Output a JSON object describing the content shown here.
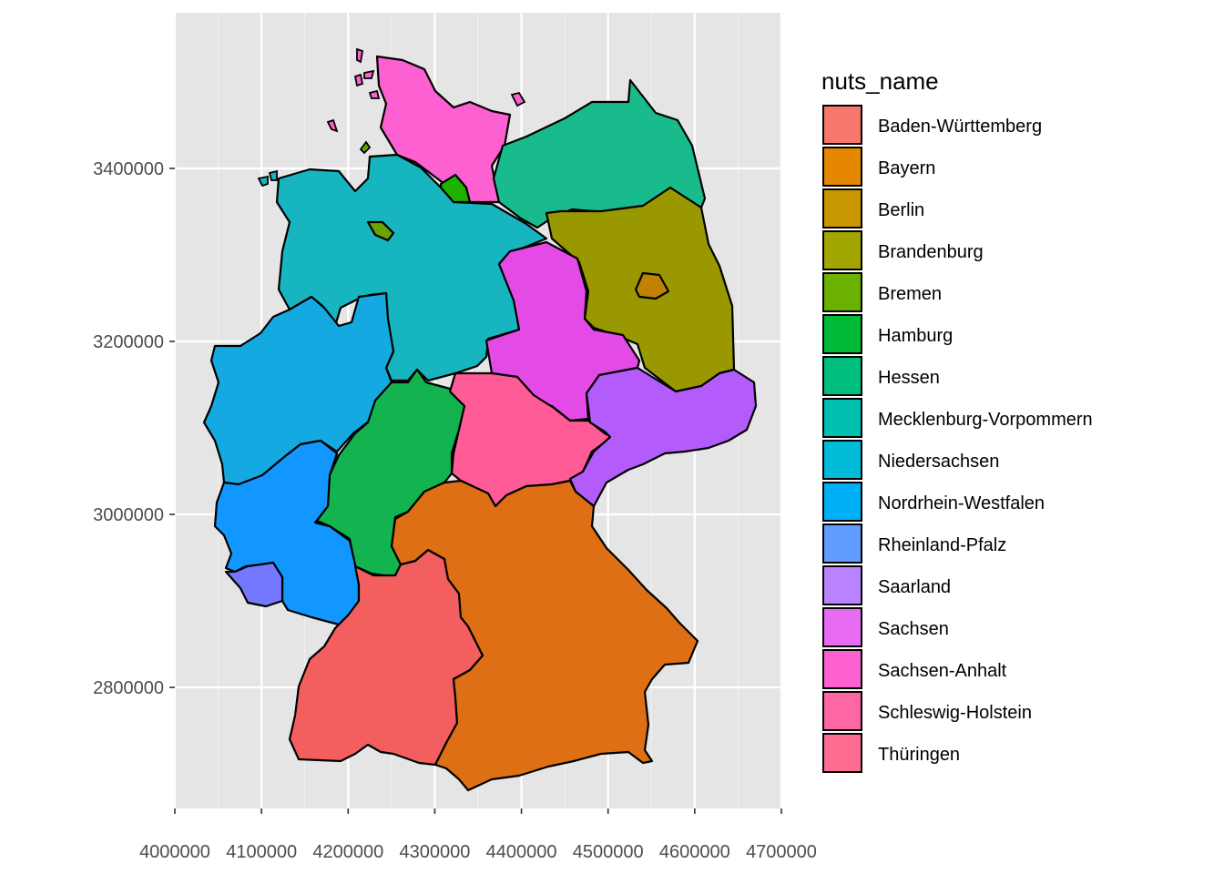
{
  "chart_data": {
    "type": "map",
    "title": "",
    "xlabel": "",
    "ylabel": "",
    "x_ticks": [
      "4000000",
      "4100000",
      "4200000",
      "4300000",
      "4400000",
      "4500000",
      "4600000",
      "4700000"
    ],
    "y_ticks": [
      "2800000",
      "3000000",
      "3200000",
      "3400000"
    ],
    "xlim": [
      4000000,
      4700000
    ],
    "ylim": [
      2660000,
      3580000
    ],
    "grid": true,
    "panel_background": "#e5e5e5",
    "legend_position": "right",
    "legend": {
      "title": "nuts_name",
      "entries": [
        {
          "name": "Baden-Württemberg",
          "color": "#F8766D"
        },
        {
          "name": "Bayern",
          "color": "#E58700"
        },
        {
          "name": "Berlin",
          "color": "#C99800"
        },
        {
          "name": "Brandenburg",
          "color": "#A3A500"
        },
        {
          "name": "Bremen",
          "color": "#6BB100"
        },
        {
          "name": "Hamburg",
          "color": "#00BA38"
        },
        {
          "name": "Hessen",
          "color": "#00BF7D"
        },
        {
          "name": "Mecklenburg-Vorpommern",
          "color": "#00C0AF"
        },
        {
          "name": "Niedersachsen",
          "color": "#00BCD8"
        },
        {
          "name": "Nordrhein-Westfalen",
          "color": "#00B0F6"
        },
        {
          "name": "Rheinland-Pfalz",
          "color": "#619CFF"
        },
        {
          "name": "Saarland",
          "color": "#B983FF"
        },
        {
          "name": "Sachsen",
          "color": "#E76BF3"
        },
        {
          "name": "Sachsen-Anhalt",
          "color": "#FD61D1"
        },
        {
          "name": "Schleswig-Holstein",
          "color": "#FF67A4"
        },
        {
          "name": "Thüringen",
          "color": "#FF6C91"
        }
      ]
    },
    "regions": [
      {
        "name": "Schleswig-Holstein",
        "fill": "#FD61D1"
      },
      {
        "name": "Hamburg",
        "fill": "#1DB100"
      },
      {
        "name": "Mecklenburg-Vorpommern",
        "fill": "#19BA8C"
      },
      {
        "name": "Niedersachsen",
        "fill": "#17B5BF"
      },
      {
        "name": "Bremen",
        "fill": "#6BA300"
      },
      {
        "name": "Brandenburg",
        "fill": "#9A9800"
      },
      {
        "name": "Berlin",
        "fill": "#C08200"
      },
      {
        "name": "Sachsen-Anhalt",
        "fill": "#E44AE6"
      },
      {
        "name": "Nordrhein-Westfalen",
        "fill": "#14A9E1"
      },
      {
        "name": "Hessen",
        "fill": "#13B450"
      },
      {
        "name": "Thüringen",
        "fill": "#FF5C97"
      },
      {
        "name": "Sachsen",
        "fill": "#B35CFB"
      },
      {
        "name": "Rheinland-Pfalz",
        "fill": "#1197FF"
      },
      {
        "name": "Saarland",
        "fill": "#7378FF"
      },
      {
        "name": "Baden-Württemberg",
        "fill": "#F35E5E"
      },
      {
        "name": "Bayern",
        "fill": "#DE6F14"
      }
    ]
  }
}
